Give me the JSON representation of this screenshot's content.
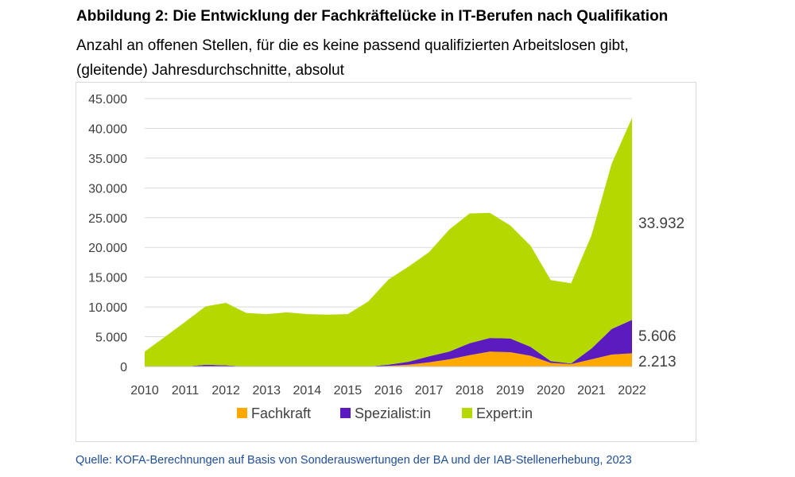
{
  "header": {
    "title": "Abbildung 2: Die Entwicklung der Fachkräftelücke in IT-Berufen nach Qualifikation",
    "subtitle_line1": "Anzahl an offenen Stellen, für die es keine passend qualifizierten Arbeitslosen gibt,",
    "subtitle_line2": "(gleitende) Jahresdurchschnitte, absolut"
  },
  "footer": {
    "source": "Quelle: KOFA-Berechnungen auf Basis von Sonderauswertungen der BA und der IAB-Stellenerhebung, 2023"
  },
  "chart_data": {
    "type": "area",
    "stacked": true,
    "x": [
      2010,
      2010.5,
      2011,
      2011.5,
      2012,
      2012.5,
      2013,
      2013.5,
      2014,
      2014.5,
      2015,
      2015.5,
      2016,
      2016.5,
      2017,
      2017.5,
      2018,
      2018.5,
      2019,
      2019.5,
      2020,
      2020.5,
      2021,
      2021.5,
      2022
    ],
    "series": [
      {
        "name": "Fachkraft",
        "color": "#ffa800",
        "values": [
          0,
          0,
          0,
          0,
          0,
          0,
          0,
          0,
          0,
          0,
          0,
          0,
          100,
          300,
          700,
          1200,
          1900,
          2500,
          2400,
          1800,
          600,
          400,
          1200,
          2000,
          2213
        ]
      },
      {
        "name": "Spezialist:in",
        "color": "#5b1bbf",
        "values": [
          0,
          0,
          0,
          300,
          200,
          0,
          0,
          0,
          0,
          0,
          0,
          0,
          200,
          500,
          1000,
          1300,
          2000,
          2300,
          2300,
          1500,
          300,
          100,
          1800,
          4300,
          5606
        ]
      },
      {
        "name": "Expert:in",
        "color": "#b5d900",
        "values": [
          2500,
          5000,
          7500,
          9800,
          10500,
          9000,
          8800,
          9100,
          8800,
          8700,
          8800,
          10900,
          14300,
          16000,
          17500,
          20500,
          21800,
          21000,
          19000,
          17000,
          13600,
          13500,
          19000,
          27800,
          33932
        ]
      }
    ],
    "end_labels": [
      "33.932",
      "5.606",
      "2.213"
    ],
    "x_ticks": [
      "2010",
      "2011",
      "2012",
      "2013",
      "2014",
      "2015",
      "2016",
      "2017",
      "2018",
      "2019",
      "2020",
      "2021",
      "2022"
    ],
    "y_ticks": [
      "0",
      "5.000",
      "10.000",
      "15.000",
      "20.000",
      "25.000",
      "30.000",
      "35.000",
      "40.000",
      "45.000"
    ],
    "ylim": [
      0,
      45000
    ],
    "xlim": [
      2010,
      2022
    ],
    "grid": "horizontal",
    "legend": "bottom"
  }
}
